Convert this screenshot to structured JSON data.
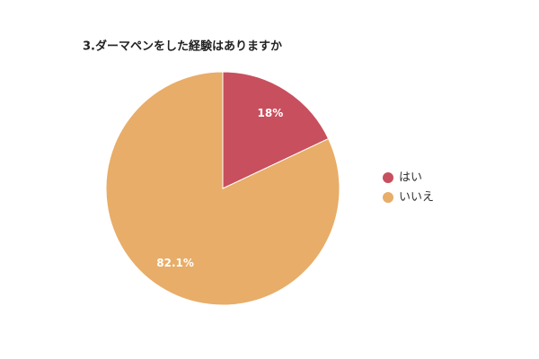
{
  "chart_data": {
    "type": "pie",
    "title": "3.ダーマペンをした経験はありますか",
    "categories": [
      "はい",
      "いいえ"
    ],
    "values": [
      18,
      82.1
    ],
    "value_labels": [
      "18%",
      "82.1%"
    ],
    "colors": [
      "#c84f5e",
      "#e8ad68"
    ],
    "legend": "right"
  }
}
